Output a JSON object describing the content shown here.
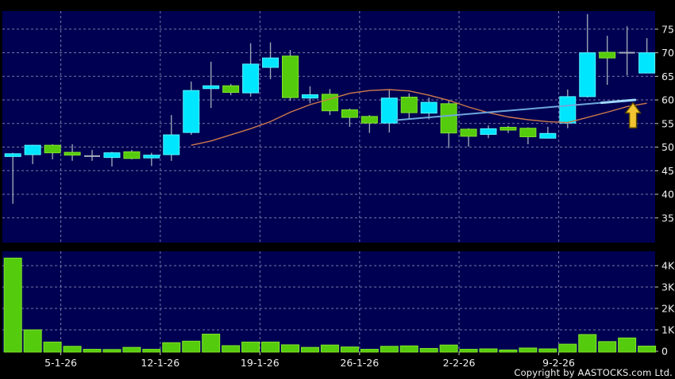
{
  "window": {
    "copyright": "Copyright by AASTOCKS.com Ltd."
  },
  "colors": {
    "background": "#000000",
    "pane_background": "#000052",
    "grid": "#8E8EB6",
    "wick": "#9AA4B4",
    "doji": "#A8B0BC",
    "up_candle": "#00E6FF",
    "up_candle_border": "#59F2FF",
    "down_candle": "#55CB0D",
    "down_candle_border": "#83E729",
    "volume_bar": "#55CB0D",
    "volume_bar_border": "#83E729",
    "sma_line": "#CE7A4A",
    "trendline": "#6FA8DC",
    "trendline_tip": "#9FD8FF",
    "arrow_fill": "#F2C431",
    "arrow_border": "#5C4A00",
    "axis_text": "#F0F0F0",
    "tick_mark": "#C8C8C8"
  },
  "chart_data": {
    "type": "candlestick_with_volume",
    "grid": true,
    "legend": false,
    "price_axis": {
      "side": "right",
      "ticks": [
        75,
        70,
        65,
        60,
        55,
        50,
        45,
        40,
        35
      ]
    },
    "volume_axis": {
      "side": "right",
      "ticks": [
        {
          "label": "4K",
          "value": 4000
        },
        {
          "label": "3K",
          "value": 3000
        },
        {
          "label": "2K",
          "value": 2000
        },
        {
          "label": "1K",
          "value": 1000
        },
        {
          "label": "0",
          "value": 0
        }
      ]
    },
    "x_axis": {
      "tick_labels": [
        "5-1-26",
        "12-1-26",
        "19-1-26",
        "26-1-26",
        "2-2-26",
        "9-2-26"
      ],
      "tick_positions_index": [
        2.42,
        7.44,
        12.47,
        17.5,
        22.52,
        27.55
      ]
    },
    "candles": [
      {
        "d": "30-12-25",
        "o": 48.6,
        "h": 48.8,
        "l": 38.0,
        "c": 48.2,
        "dir": "up",
        "v": 4350
      },
      {
        "d": "31-12-25",
        "o": 48.4,
        "h": 50.5,
        "l": 46.4,
        "c": 50.4,
        "dir": "up",
        "v": 1000
      },
      {
        "d": "2-1-26",
        "o": 50.4,
        "h": 50.6,
        "l": 47.4,
        "c": 48.8,
        "dir": "down",
        "v": 430
      },
      {
        "d": "5-1-26",
        "o": 48.9,
        "h": 50.6,
        "l": 47.1,
        "c": 48.3,
        "dir": "down",
        "v": 230
      },
      {
        "d": "6-1-26",
        "o": 48.1,
        "h": 49.4,
        "l": 47.1,
        "c": 48.1,
        "dir": "flat",
        "v": 90
      },
      {
        "d": "7-1-26",
        "o": 47.8,
        "h": 49.0,
        "l": 45.9,
        "c": 48.8,
        "dir": "up",
        "v": 80
      },
      {
        "d": "8-1-26",
        "o": 49.0,
        "h": 49.4,
        "l": 47.4,
        "c": 47.6,
        "dir": "down",
        "v": 180
      },
      {
        "d": "9-1-26",
        "o": 48.0,
        "h": 48.8,
        "l": 46.0,
        "c": 48.3,
        "dir": "up",
        "v": 90
      },
      {
        "d": "12-1-26",
        "o": 48.4,
        "h": 56.8,
        "l": 47.1,
        "c": 52.6,
        "dir": "up",
        "v": 400
      },
      {
        "d": "13-1-26",
        "o": 53.1,
        "h": 63.9,
        "l": 52.6,
        "c": 62.0,
        "dir": "up",
        "v": 470
      },
      {
        "d": "14-1-26",
        "o": 62.4,
        "h": 68.1,
        "l": 58.3,
        "c": 63.0,
        "dir": "up",
        "v": 800
      },
      {
        "d": "15-1-26",
        "o": 63.0,
        "h": 63.4,
        "l": 61.0,
        "c": 61.6,
        "dir": "down",
        "v": 260
      },
      {
        "d": "16-1-26",
        "o": 61.5,
        "h": 72.0,
        "l": 60.7,
        "c": 67.6,
        "dir": "up",
        "v": 430
      },
      {
        "d": "19-1-26",
        "o": 66.9,
        "h": 72.2,
        "l": 64.4,
        "c": 68.9,
        "dir": "up",
        "v": 430
      },
      {
        "d": "20-1-26",
        "o": 69.3,
        "h": 70.6,
        "l": 59.8,
        "c": 60.5,
        "dir": "down",
        "v": 300
      },
      {
        "d": "21-1-26",
        "o": 60.4,
        "h": 62.9,
        "l": 59.3,
        "c": 61.1,
        "dir": "up",
        "v": 180
      },
      {
        "d": "22-1-26",
        "o": 61.2,
        "h": 62.3,
        "l": 56.8,
        "c": 57.7,
        "dir": "down",
        "v": 290
      },
      {
        "d": "23-1-26",
        "o": 57.9,
        "h": 58.2,
        "l": 54.3,
        "c": 56.3,
        "dir": "down",
        "v": 200
      },
      {
        "d": "26-1-26",
        "o": 56.5,
        "h": 56.8,
        "l": 53.0,
        "c": 55.1,
        "dir": "down",
        "v": 90
      },
      {
        "d": "27-1-26",
        "o": 55.1,
        "h": 62.2,
        "l": 53.1,
        "c": 60.4,
        "dir": "up",
        "v": 230
      },
      {
        "d": "28-1-26",
        "o": 60.6,
        "h": 61.4,
        "l": 55.9,
        "c": 57.3,
        "dir": "down",
        "v": 250
      },
      {
        "d": "29-1-26",
        "o": 57.2,
        "h": 60.5,
        "l": 55.9,
        "c": 59.5,
        "dir": "up",
        "v": 130
      },
      {
        "d": "30-1-26",
        "o": 59.2,
        "h": 59.9,
        "l": 49.8,
        "c": 53.0,
        "dir": "down",
        "v": 290
      },
      {
        "d": "2-2-26",
        "o": 53.8,
        "h": 54.0,
        "l": 50.1,
        "c": 52.3,
        "dir": "down",
        "v": 90
      },
      {
        "d": "3-2-26",
        "o": 52.7,
        "h": 54.6,
        "l": 51.9,
        "c": 53.9,
        "dir": "up",
        "v": 110
      },
      {
        "d": "4-2-26",
        "o": 54.2,
        "h": 54.5,
        "l": 53.0,
        "c": 53.9,
        "dir": "down",
        "v": 60
      },
      {
        "d": "5-2-26",
        "o": 54.0,
        "h": 54.2,
        "l": 50.6,
        "c": 52.2,
        "dir": "down",
        "v": 150
      },
      {
        "d": "6-2-26",
        "o": 51.9,
        "h": 54.3,
        "l": 51.9,
        "c": 52.9,
        "dir": "up",
        "v": 110
      },
      {
        "d": "9-2-26",
        "o": 55.1,
        "h": 62.2,
        "l": 54.0,
        "c": 60.7,
        "dir": "up",
        "v": 330
      },
      {
        "d": "10-2-26",
        "o": 60.7,
        "h": 78.2,
        "l": 60.5,
        "c": 70.0,
        "dir": "up",
        "v": 780
      },
      {
        "d": "11-2-26",
        "o": 70.1,
        "h": 73.6,
        "l": 63.2,
        "c": 68.9,
        "dir": "down",
        "v": 450
      },
      {
        "d": "12-2-26",
        "o": 70.0,
        "h": 75.6,
        "l": 65.2,
        "c": 70.0,
        "dir": "flat",
        "v": 620
      },
      {
        "d": "13-2-26",
        "o": 65.7,
        "h": 73.1,
        "l": 65.7,
        "c": 70.0,
        "dir": "up",
        "v": 240
      }
    ],
    "overlays": {
      "sma": {
        "name": "moving-average",
        "values": [
          null,
          null,
          null,
          null,
          null,
          null,
          null,
          null,
          null,
          50.4,
          51.3,
          52.6,
          53.9,
          55.4,
          57.4,
          59.0,
          60.2,
          61.4,
          62.0,
          62.2,
          61.9,
          61.0,
          59.9,
          58.5,
          57.3,
          56.4,
          55.8,
          55.4,
          55.2,
          56.3,
          57.4,
          58.6,
          59.3
        ]
      },
      "trendline": {
        "from": {
          "index": 19.3,
          "price": 55.7
        },
        "to": {
          "index": 31.4,
          "price": 60.0
        }
      },
      "arrow": {
        "index": 31.3,
        "tip_price": 59.4,
        "base_price": 54.1,
        "direction": "up"
      }
    }
  }
}
